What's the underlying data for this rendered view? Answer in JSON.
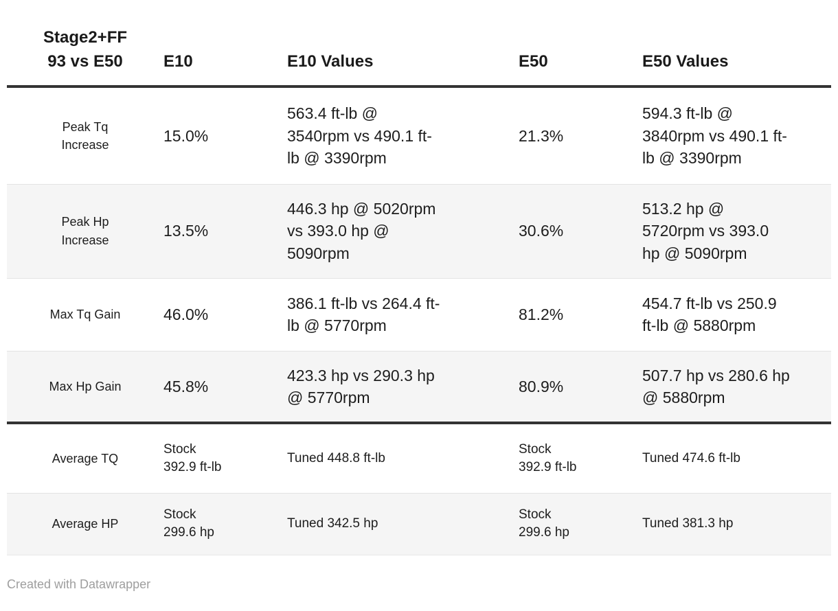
{
  "colors": {
    "text": "#1d1d1d",
    "heavy_rule": "#333333",
    "row_divider": "#e3e3e3",
    "zebra_row_bg": "#f5f5f5",
    "credit_text": "#9e9e9e"
  },
  "table": {
    "title_header": "Stage2+FF\n93 vs E50",
    "column_headers": {
      "e10": "E10",
      "e10_values": "E10 Values",
      "e50": "E50",
      "e50_values": "E50 Values"
    },
    "rows": [
      {
        "label": "Peak Tq\nIncrease",
        "e10": "15.0%",
        "e10_values": "563.4 ft-lb @\n3540rpm vs 490.1 ft-\nlb @ 3390rpm",
        "e50": "21.3%",
        "e50_values": "594.3 ft-lb @\n3840rpm vs 490.1 ft-\nlb @ 3390rpm"
      },
      {
        "label": "Peak Hp\nIncrease",
        "e10": "13.5%",
        "e10_values": "446.3 hp @ 5020rpm\nvs 393.0 hp @\n5090rpm",
        "e50": "30.6%",
        "e50_values": "513.2 hp @\n5720rpm vs 393.0\nhp @ 5090rpm"
      },
      {
        "label": "Max Tq Gain",
        "e10": "46.0%",
        "e10_values": "386.1 ft-lb vs 264.4 ft-\nlb @ 5770rpm",
        "e50": "81.2%",
        "e50_values": "454.7 ft-lb vs 250.9\nft-lb @ 5880rpm"
      },
      {
        "label": "Max Hp Gain",
        "e10": "45.8%",
        "e10_values": "423.3 hp vs 290.3 hp\n@ 5770rpm",
        "e50": "80.9%",
        "e50_values": "507.7 hp vs 280.6 hp\n@ 5880rpm"
      },
      {
        "label": "Average TQ",
        "e10": "Stock\n392.9 ft-lb",
        "e10_values": "Tuned 448.8 ft-lb",
        "e50": "Stock\n392.9 ft-lb",
        "e50_values": "Tuned 474.6 ft-lb"
      },
      {
        "label": "Average HP",
        "e10": "Stock\n299.6 hp",
        "e10_values": "Tuned 342.5 hp",
        "e50": "Stock\n299.6 hp",
        "e50_values": "Tuned 381.3 hp"
      }
    ]
  },
  "chart_data": {
    "type": "table",
    "title": "Stage2+FF 93 vs E50",
    "columns": [
      "Stage2+FF 93 vs E50",
      "E10",
      "E10 Values",
      "E50",
      "E50 Values"
    ],
    "rows": [
      [
        "Peak Tq Increase",
        "15.0%",
        "563.4 ft-lb @ 3540rpm vs 490.1 ft-lb @ 3390rpm",
        "21.3%",
        "594.3 ft-lb @ 3840rpm vs 490.1 ft-lb @ 3390rpm"
      ],
      [
        "Peak Hp Increase",
        "13.5%",
        "446.3 hp @ 5020rpm vs 393.0 hp @ 5090rpm",
        "30.6%",
        "513.2 hp @ 5720rpm vs 393.0 hp @ 5090rpm"
      ],
      [
        "Max Tq Gain",
        "46.0%",
        "386.1 ft-lb vs 264.4 ft-lb @ 5770rpm",
        "81.2%",
        "454.7 ft-lb vs 250.9 ft-lb @ 5880rpm"
      ],
      [
        "Max Hp Gain",
        "45.8%",
        "423.3 hp vs 290.3 hp @ 5770rpm",
        "80.9%",
        "507.7 hp vs 280.6 hp @ 5880rpm"
      ],
      [
        "Average TQ",
        "Stock 392.9 ft-lb",
        "Tuned 448.8 ft-lb",
        "Stock 392.9 ft-lb",
        "Tuned 474.6 ft-lb"
      ],
      [
        "Average HP",
        "Stock 299.6 hp",
        "Tuned 342.5 hp",
        "Stock 299.6 hp",
        "Tuned 381.3 hp"
      ]
    ],
    "percent_series": [
      {
        "name": "E10",
        "values": [
          15.0,
          13.5,
          46.0,
          45.8
        ]
      },
      {
        "name": "E50",
        "values": [
          21.3,
          30.6,
          81.2,
          80.9
        ]
      }
    ],
    "averages": {
      "stock_tq_ftlb": 392.9,
      "stock_hp": 299.6,
      "e10_tuned_tq_ftlb": 448.8,
      "e10_tuned_hp": 342.5,
      "e50_tuned_tq_ftlb": 474.6,
      "e50_tuned_hp": 381.3
    },
    "layout": {
      "zebra_striping": true,
      "section_break_before_row": 4,
      "legend_position": "none",
      "grid": "horizontal-rules"
    }
  },
  "footer": {
    "credit": "Created with Datawrapper"
  }
}
